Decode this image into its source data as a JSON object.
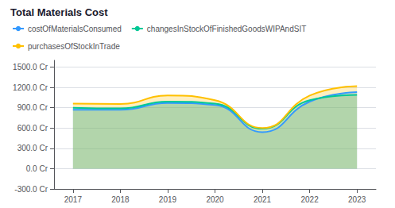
{
  "chart_data": {
    "type": "area",
    "title": "Total Materials Cost",
    "x": [
      2017,
      2018,
      2019,
      2020,
      2021,
      2022,
      2023
    ],
    "series": [
      {
        "name": "costOfMaterialsConsumed",
        "color": "#3399FF",
        "values": [
          870,
          870,
          970,
          940,
          540,
          990,
          1130
        ]
      },
      {
        "name": "changesInStockOfFinishedGoodsWIPAndSIT",
        "color": "#00C896",
        "values": [
          900,
          890,
          990,
          960,
          590,
          1010,
          1090
        ]
      },
      {
        "name": "purchasesOfStockInTrade",
        "color": "#FFC000",
        "values": [
          960,
          955,
          1080,
          1010,
          600,
          1080,
          1220
        ]
      }
    ],
    "xlim": [
      2016.6,
      2023.4
    ],
    "xticks": [
      2017,
      2018,
      2019,
      2020,
      2021,
      2022,
      2023
    ],
    "ylim": [
      -300,
      1600
    ],
    "yticks": [
      {
        "value": -300,
        "label": "-300.0 Cr"
      },
      {
        "value": 0,
        "label": "0.0 Cr"
      },
      {
        "value": 300,
        "label": "300.0 Cr"
      },
      {
        "value": 600,
        "label": "600.0 Cr"
      },
      {
        "value": 900,
        "label": "900.0 Cr"
      },
      {
        "value": 1200,
        "label": "1200.0 Cr"
      },
      {
        "value": 1500,
        "label": "1500.0 Cr"
      }
    ],
    "grid": true,
    "legend": "top"
  }
}
